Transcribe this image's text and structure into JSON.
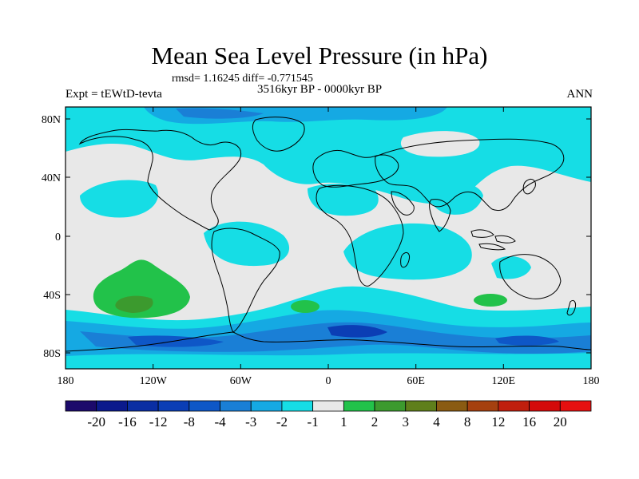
{
  "title": "Mean Sea Level Pressure (in hPa)",
  "stats": "rmsd= 1.16245 diff= -0.771545",
  "experiment": "Expt = tEWtD-tevta",
  "period": "3516kyr BP - 0000kyr BP",
  "season": "ANN",
  "lat_labels": [
    "80N",
    "40N",
    "0",
    "40S",
    "80S"
  ],
  "lon_labels": [
    "180",
    "120W",
    "60W",
    "0",
    "60E",
    "120E",
    "180"
  ],
  "colorbar": {
    "labels": [
      "-20",
      "-16",
      "-12",
      "-8",
      "-4",
      "-3",
      "-2",
      "-1",
      "1",
      "2",
      "3",
      "4",
      "8",
      "12",
      "16",
      "20"
    ],
    "colors": [
      "#1c0a6b",
      "#0b1a8c",
      "#0a2ea3",
      "#0b3eb5",
      "#0e57c7",
      "#1a7fd6",
      "#15a9e3",
      "#16dde5",
      "#e8e8e8",
      "#22c24a",
      "#3c9a2e",
      "#5f7f1b",
      "#8a5b12",
      "#a5400f",
      "#c01f0d",
      "#d40a0a",
      "#e61010"
    ]
  },
  "fill_colors": {
    "neutral": "#e8e8e8",
    "cyan": "#16dde5",
    "light_blue": "#15a9e3",
    "mid_blue": "#1a7fd6",
    "blue": "#0e57c7",
    "dark_blue": "#0b3eb5",
    "green": "#22c24a",
    "olive": "#3c9a2e"
  }
}
